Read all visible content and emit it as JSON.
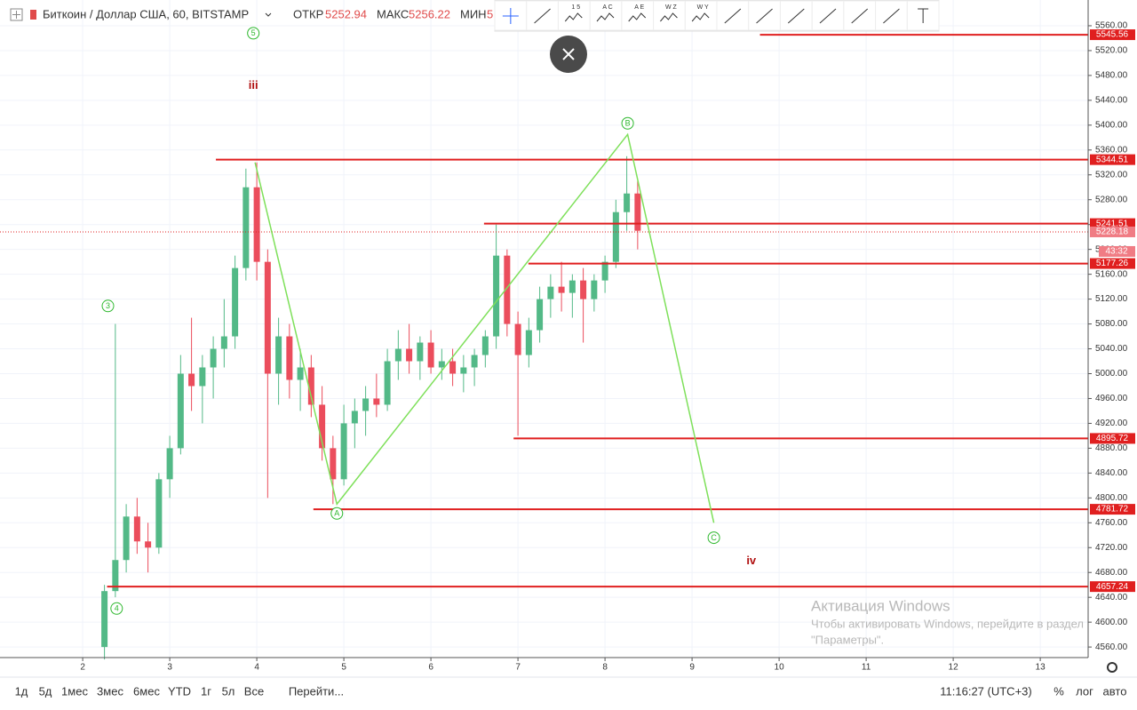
{
  "header": {
    "symbol": "Биткоин / Доллар США, 60, BITSTAMP",
    "open_label": "ОТКР",
    "open": "5252.94",
    "high_label": "МАКС",
    "high": "5256.22",
    "low_label": "МИН",
    "low": "5"
  },
  "toolbar": {
    "labels": [
      "1 5",
      "A C",
      "A E",
      "W Z",
      "W Y"
    ]
  },
  "chart_data": {
    "type": "candlestick",
    "x": [
      2.25,
      2.375,
      2.5,
      2.625,
      2.75,
      2.875,
      3.0,
      3.125,
      3.25,
      3.375,
      3.5,
      3.625,
      3.75,
      3.875,
      4.0,
      4.125,
      4.25,
      4.375,
      4.5,
      4.625,
      4.75,
      4.875,
      5.0,
      5.125,
      5.25,
      5.375,
      5.5,
      5.625,
      5.75,
      5.875,
      6.0,
      6.125,
      6.25,
      6.375,
      6.5,
      6.625,
      6.75,
      6.875,
      7.0,
      7.125,
      7.25,
      7.375,
      7.5,
      7.625,
      7.75,
      7.875,
      8.0,
      8.125,
      8.25,
      8.375
    ],
    "open": [
      4560,
      4650,
      4700,
      4770,
      4730,
      4720,
      4830,
      4880,
      5000,
      4980,
      5010,
      5040,
      5060,
      5170,
      5300,
      5180,
      5000,
      5060,
      4990,
      5010,
      4950,
      4880,
      4830,
      4920,
      4940,
      4960,
      4950,
      5020,
      5040,
      5020,
      5050,
      5010,
      5020,
      5000,
      5010,
      5030,
      5060,
      5190,
      5080,
      5030,
      5070,
      5120,
      5140,
      5130,
      5150,
      5120,
      5150,
      5180,
      5260,
      5290
    ],
    "high": [
      4660,
      5080,
      4790,
      4800,
      4760,
      4840,
      4900,
      5030,
      5090,
      5030,
      5060,
      5120,
      5190,
      5330,
      5340,
      5200,
      5090,
      5080,
      5040,
      5030,
      4980,
      4900,
      4950,
      4960,
      4980,
      5000,
      5040,
      5070,
      5080,
      5060,
      5070,
      5040,
      5040,
      5030,
      5040,
      5070,
      5240,
      5200,
      5100,
      5090,
      5140,
      5160,
      5180,
      5160,
      5170,
      5160,
      5190,
      5280,
      5350,
      5310
    ],
    "low": [
      4540,
      4640,
      4680,
      4710,
      4680,
      4710,
      4800,
      4870,
      4940,
      4920,
      4960,
      5010,
      5040,
      5150,
      5150,
      4800,
      4950,
      4960,
      4940,
      4930,
      4860,
      4790,
      4820,
      4880,
      4900,
      4930,
      4940,
      4990,
      5000,
      4990,
      5000,
      4990,
      4980,
      4970,
      4980,
      5010,
      5040,
      5060,
      4900,
      5010,
      5050,
      5090,
      5100,
      5090,
      5050,
      5100,
      5130,
      5170,
      5230,
      5200
    ],
    "close": [
      4650,
      4700,
      4770,
      4730,
      4720,
      4830,
      4880,
      5000,
      4980,
      5010,
      5040,
      5060,
      5170,
      5300,
      5180,
      5000,
      5060,
      4990,
      5010,
      4950,
      4880,
      4830,
      4920,
      4940,
      4960,
      4950,
      5020,
      5040,
      5020,
      5050,
      5010,
      5020,
      5000,
      5010,
      5030,
      5060,
      5190,
      5080,
      5030,
      5070,
      5120,
      5140,
      5130,
      5150,
      5120,
      5150,
      5180,
      5260,
      5290,
      5230
    ],
    "up_color": "#53b987",
    "down_color": "#eb4d5c",
    "xlim": [
      1.05,
      13.55
    ],
    "ylim": [
      4543,
      5590
    ],
    "xticks": [
      2,
      3,
      4,
      5,
      6,
      7,
      8,
      9,
      10,
      11,
      12,
      13
    ],
    "yticks": [
      {
        "value": 4560,
        "label": "4560.00"
      },
      {
        "value": 4600,
        "label": "4600.00"
      },
      {
        "value": 4640,
        "label": "4640.00"
      },
      {
        "value": 4680,
        "label": "4680.00"
      },
      {
        "value": 4720,
        "label": "4720.00"
      },
      {
        "value": 4760,
        "label": "4760.00"
      },
      {
        "value": 4800,
        "label": "4800.00"
      },
      {
        "value": 4840,
        "label": "4840.00"
      },
      {
        "value": 4880,
        "label": "4880.00"
      },
      {
        "value": 4920,
        "label": "4920.00"
      },
      {
        "value": 4960,
        "label": "4960.00"
      },
      {
        "value": 5000,
        "label": "5000.00"
      },
      {
        "value": 5040,
        "label": "5040.00"
      },
      {
        "value": 5080,
        "label": "5080.00"
      },
      {
        "value": 5120,
        "label": "5120.00"
      },
      {
        "value": 5160,
        "label": "5160.00"
      },
      {
        "value": 5200,
        "label": "5200.00"
      },
      {
        "value": 5240,
        "label": "5240.00"
      },
      {
        "value": 5280,
        "label": "5280.00"
      },
      {
        "value": 5320,
        "label": "5320.00"
      },
      {
        "value": 5360,
        "label": "5360.00"
      },
      {
        "value": 5400,
        "label": "5400.00"
      },
      {
        "value": 5440,
        "label": "5440.00"
      },
      {
        "value": 5480,
        "label": "5480.00"
      },
      {
        "value": 5520,
        "label": "5520.00"
      },
      {
        "value": 5560,
        "label": "5560.00"
      }
    ],
    "grid": true,
    "level_color": "#e01f1f",
    "levels": [
      {
        "price": 5545.56,
        "x_start": 9.78
      },
      {
        "price": 5344.51,
        "x_start": 3.53
      },
      {
        "price": 5241.51,
        "x_start": 6.61
      },
      {
        "price": 5177.26,
        "x_start": 7.12
      },
      {
        "price": 4895.72,
        "x_start": 6.95
      },
      {
        "price": 4781.72,
        "x_start": 4.65
      },
      {
        "price": 4657.24,
        "x_start": 2.28
      }
    ],
    "current_price": 5228.18,
    "countdown": "43:32",
    "wave": {
      "x": [
        3.98,
        4.92,
        8.26,
        9.25
      ],
      "y": [
        5340,
        4790,
        5385,
        4760
      ],
      "color": "#7ee05a"
    },
    "annotations": [
      {
        "text": "5",
        "x": 3.96,
        "y": 5548,
        "color": "#2eb82e",
        "circled": true
      },
      {
        "text": "3",
        "x": 2.29,
        "y": 5109,
        "color": "#2eb82e",
        "circled": true
      },
      {
        "text": "4",
        "x": 2.39,
        "y": 4622,
        "color": "#2eb82e",
        "circled": true
      },
      {
        "text": "A",
        "x": 4.92,
        "y": 4775,
        "color": "#2eb82e",
        "circled": true
      },
      {
        "text": "B",
        "x": 8.26,
        "y": 5403,
        "color": "#2eb82e",
        "circled": true
      },
      {
        "text": "C",
        "x": 9.25,
        "y": 4736,
        "color": "#2eb82e",
        "circled": true
      },
      {
        "text": "iii",
        "x": 3.96,
        "y": 5464,
        "color": "#b01010",
        "circled": false
      },
      {
        "text": "iv",
        "x": 9.68,
        "y": 4699,
        "color": "#b01010",
        "circled": false
      }
    ]
  },
  "bottom_bar": {
    "ranges": [
      "1д",
      "5д",
      "1мес",
      "3мес",
      "6мес",
      "YTD",
      "1г",
      "5л",
      "Все"
    ],
    "goto": "Перейти...",
    "time": "11:16:27 (UTC+3)",
    "percent": "%",
    "log": "лог",
    "auto": "авто"
  },
  "watermark": {
    "title": "Активация Windows",
    "line1": "Чтобы активировать Windows, перейдите в раздел",
    "line2": "\"Параметры\"."
  }
}
